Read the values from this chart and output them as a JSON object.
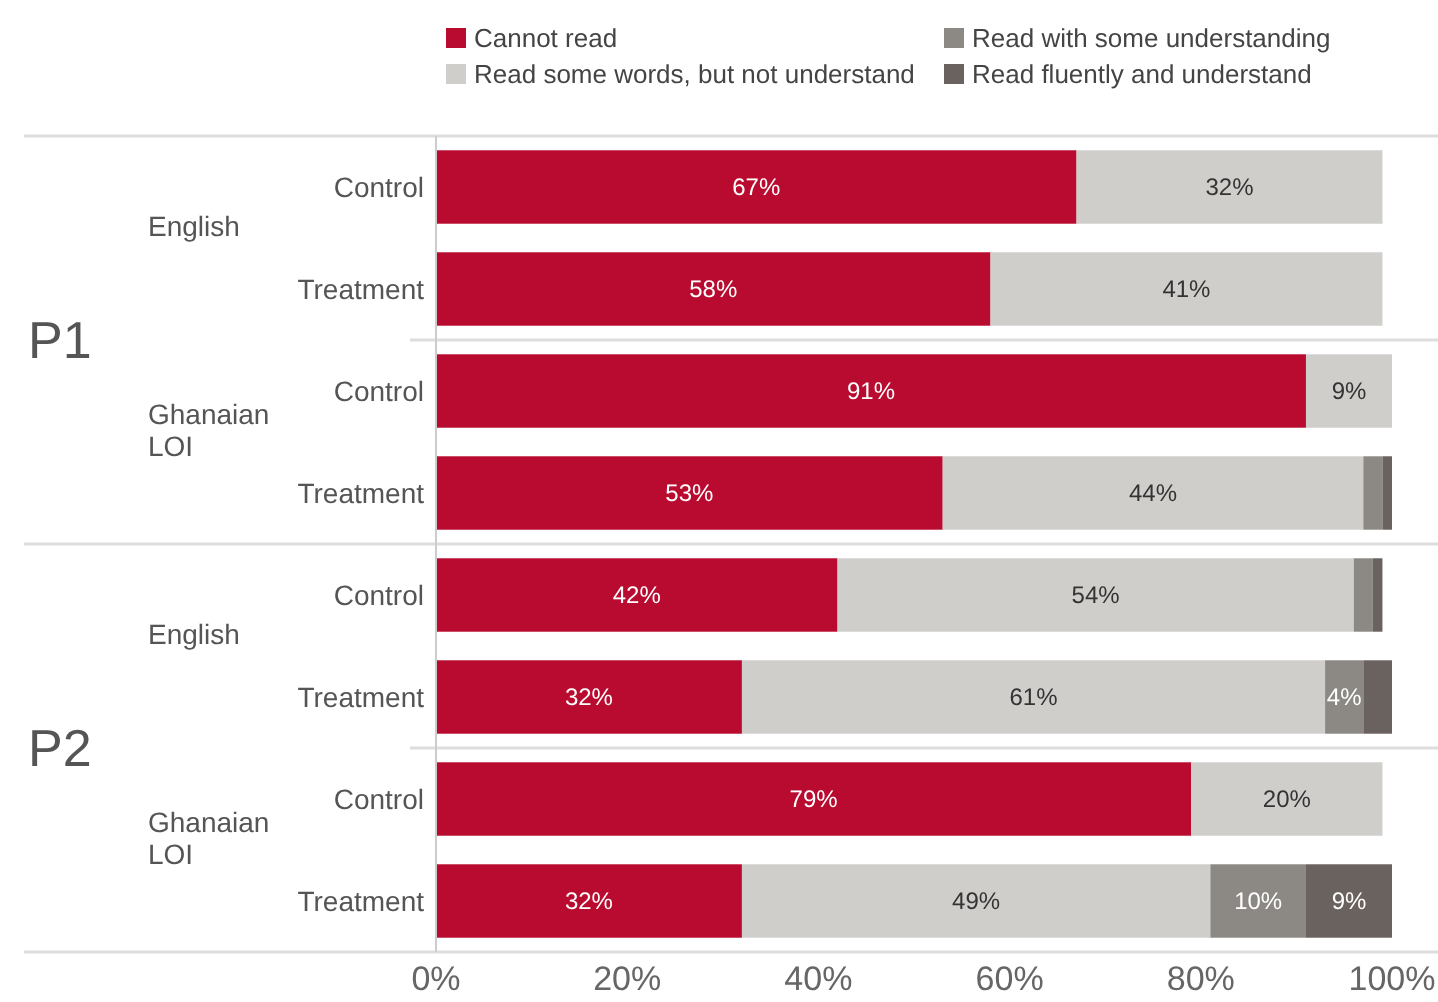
{
  "chart_data": {
    "type": "bar",
    "orientation": "horizontal",
    "stacked": true,
    "categories": [
      "Control",
      "Treatment",
      "Control",
      "Treatment",
      "Control",
      "Treatment",
      "Control",
      "Treatment"
    ],
    "annotations": [
      "English",
      "Ghanaian LOI",
      "English",
      "Ghanaian LOI",
      "P1",
      "P2"
    ],
    "series": [
      {
        "name": "Cannot read",
        "color": "#b90b2f",
        "values": [
          67,
          58,
          91,
          53,
          42,
          32,
          79,
          32
        ],
        "value_labels": [
          "67%",
          "58%",
          "91%",
          "53%",
          "42%",
          "32%",
          "79%",
          "32%"
        ]
      },
      {
        "name": "Read some words, but not understand",
        "color": "#d0cecb",
        "values": [
          32,
          41,
          9,
          44,
          54,
          61,
          20,
          49
        ],
        "value_labels": [
          "32%",
          "41%",
          "9%",
          "44%",
          "54%",
          "61%",
          "20%",
          "49%"
        ]
      },
      {
        "name": "Read with some understanding",
        "color": "#8c8985",
        "values": [
          0,
          0,
          0,
          2,
          2,
          4,
          0,
          10
        ],
        "value_labels": [
          null,
          null,
          null,
          null,
          null,
          "4%",
          null,
          "10%"
        ]
      },
      {
        "name": "Read fluently and understand",
        "color": "#6a625f",
        "values": [
          0,
          0,
          0,
          1,
          1,
          3,
          0,
          9
        ],
        "value_labels": [
          null,
          null,
          null,
          null,
          null,
          null,
          null,
          "9%"
        ]
      }
    ],
    "xlim": [
      0,
      100
    ],
    "xticks": [
      {
        "value": 0,
        "label": "0%"
      },
      {
        "value": 20,
        "label": "20%"
      },
      {
        "value": 40,
        "label": "40%"
      },
      {
        "value": 60,
        "label": "60%"
      },
      {
        "value": 80,
        "label": "80%"
      },
      {
        "value": 100,
        "label": "100%"
      }
    ],
    "grid": false,
    "legend": "top"
  }
}
